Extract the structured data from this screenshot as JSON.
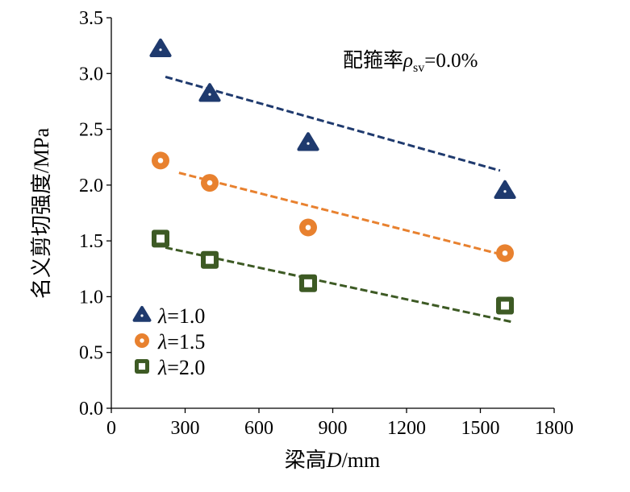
{
  "chart_data": {
    "type": "scatter",
    "title": "",
    "annotation": "配箍率ρsv=0.0%",
    "annotation_parts": {
      "prefix": "配箍率",
      "symbol": "ρ",
      "sub": "sv",
      "suffix": "=0.0%"
    },
    "xlabel": "梁高D/mm",
    "xlabel_parts": {
      "prefix": "梁高",
      "italic": "D",
      "suffix": "/mm"
    },
    "ylabel": "名义剪切强度/MPa",
    "xlim": [
      0,
      1800
    ],
    "ylim": [
      0,
      3.5
    ],
    "xticks": [
      "0",
      "300",
      "600",
      "900",
      "1200",
      "1500",
      "1800"
    ],
    "yticks": [
      "0.0",
      "0.5",
      "1.0",
      "1.5",
      "2.0",
      "2.5",
      "3.0",
      "3.5"
    ],
    "grid": false,
    "legend_position": "bottom-left",
    "series": [
      {
        "name": "λ=1.0",
        "lambda_label": "=1.0",
        "marker": "triangle",
        "color": "#1f3a6e",
        "x": [
          200,
          400,
          800,
          1600
        ],
        "y": [
          3.22,
          2.82,
          2.38,
          1.95
        ],
        "trend": {
          "x": [
            220,
            1580
          ],
          "y": [
            2.97,
            2.13
          ]
        }
      },
      {
        "name": "λ=1.5",
        "lambda_label": "=1.5",
        "marker": "circle",
        "color": "#e8812f",
        "x": [
          200,
          400,
          800,
          1600
        ],
        "y": [
          2.22,
          2.02,
          1.62,
          1.39
        ],
        "trend": {
          "x": [
            275,
            1636
          ],
          "y": [
            2.11,
            1.35
          ]
        }
      },
      {
        "name": "λ=2.0",
        "lambda_label": "=2.0",
        "marker": "square",
        "color": "#3d5a24",
        "x": [
          200,
          400,
          800,
          1600
        ],
        "y": [
          1.52,
          1.33,
          1.12,
          0.92
        ],
        "trend": {
          "x": [
            220,
            1636
          ],
          "y": [
            1.44,
            0.77
          ]
        }
      }
    ]
  }
}
